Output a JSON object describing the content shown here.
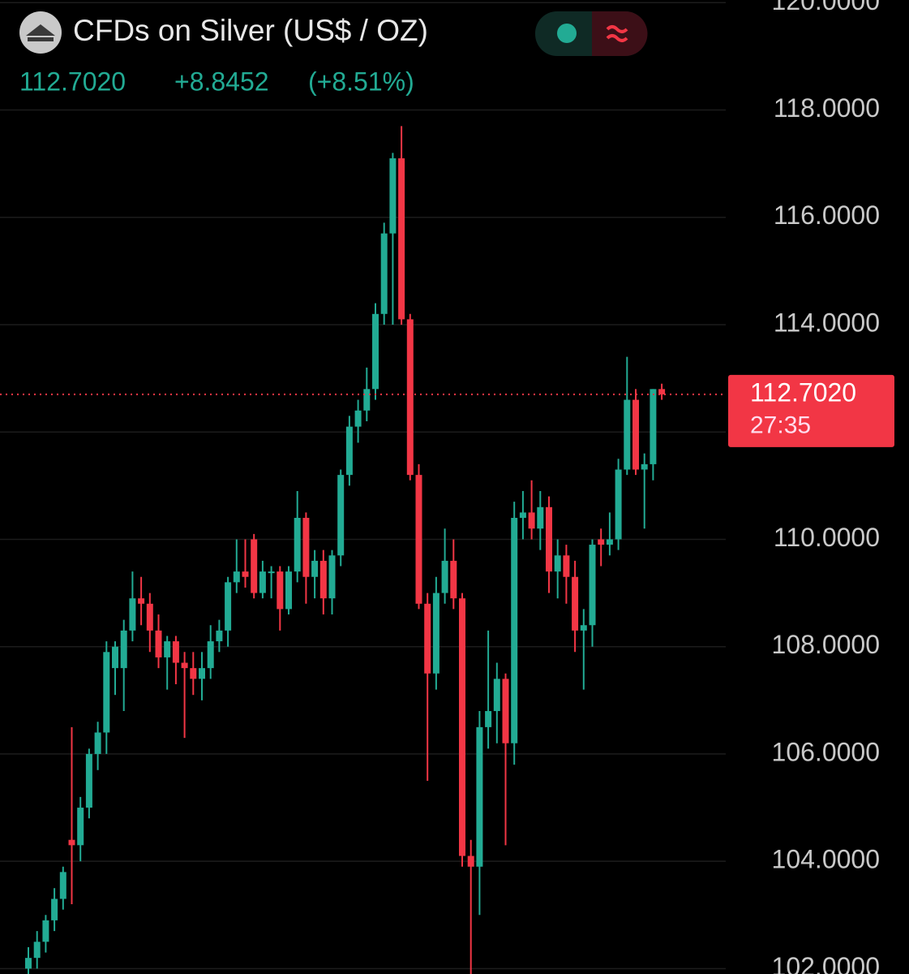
{
  "chart_data": {
    "type": "candlestick",
    "title": "CFDs on Silver (US$ / OZ)",
    "price_text": "112.7020",
    "change": "+8.8452",
    "change_pct": "(+8.51%)",
    "up_color": "#22ab94",
    "down_color": "#f23645",
    "grid": true,
    "ylim": [
      101.9,
      120.05
    ],
    "yticks": [
      {
        "value": 102,
        "label": "102.0000"
      },
      {
        "value": 104,
        "label": "104.0000"
      },
      {
        "value": 106,
        "label": "106.0000"
      },
      {
        "value": 108,
        "label": "108.0000"
      },
      {
        "value": 110,
        "label": "110.0000"
      },
      {
        "value": 112,
        "label": "112.0000"
      },
      {
        "value": 114,
        "label": "114.0000"
      },
      {
        "value": 116,
        "label": "116.0000"
      },
      {
        "value": 118,
        "label": "118.0000"
      },
      {
        "value": 120,
        "label": "120.0000"
      }
    ],
    "last_price": {
      "value": 112.702,
      "label": "112.7020"
    },
    "countdown": "27:35",
    "open": [
      102.0,
      102.2,
      102.5,
      102.9,
      103.3,
      104.4,
      104.3,
      105.0,
      106.0,
      106.4,
      107.6,
      107.6,
      108.3,
      108.9,
      108.8,
      108.3,
      107.8,
      108.1,
      107.7,
      107.6,
      107.4,
      107.6,
      108.1,
      108.3,
      109.2,
      109.4,
      110.0,
      109.0,
      109.4,
      109.4,
      108.7,
      109.4,
      110.4,
      109.3,
      109.6,
      108.9,
      109.7,
      111.2,
      112.1,
      112.4,
      112.8,
      114.2,
      115.7,
      117.1,
      114.1,
      111.2,
      108.8,
      107.5,
      109.0,
      109.6,
      108.9,
      104.1,
      103.9,
      106.5,
      106.8,
      107.4,
      106.2,
      110.4,
      110.5,
      110.2,
      110.6,
      109.4,
      109.7,
      109.3,
      108.3,
      108.4,
      110.0,
      109.9,
      110.0,
      111.3,
      112.6,
      111.3,
      111.4,
      112.8
    ],
    "high": [
      102.4,
      102.7,
      103.0,
      103.5,
      103.9,
      106.5,
      105.2,
      106.1,
      106.6,
      108.1,
      108.1,
      108.5,
      109.4,
      109.3,
      109.0,
      108.6,
      108.2,
      108.2,
      107.9,
      107.9,
      107.9,
      108.4,
      108.5,
      109.3,
      110.0,
      110.0,
      110.1,
      109.6,
      109.5,
      109.5,
      109.5,
      110.9,
      110.5,
      109.8,
      109.8,
      109.8,
      111.3,
      112.3,
      112.6,
      113.2,
      114.4,
      115.9,
      117.2,
      117.7,
      114.2,
      111.4,
      109.0,
      109.3,
      110.2,
      110.0,
      109.0,
      104.4,
      106.8,
      108.3,
      107.7,
      107.5,
      110.7,
      110.9,
      111.1,
      110.9,
      110.8,
      110.0,
      109.9,
      109.6,
      108.7,
      110.0,
      110.2,
      110.5,
      111.5,
      113.4,
      112.8,
      111.6,
      112.8,
      112.9
    ],
    "low": [
      101.9,
      102.0,
      102.3,
      102.7,
      103.1,
      103.2,
      104.0,
      104.8,
      105.7,
      106.0,
      107.1,
      106.8,
      108.1,
      108.4,
      107.9,
      107.6,
      107.2,
      107.3,
      106.3,
      107.1,
      107.0,
      107.4,
      107.9,
      108.0,
      109.0,
      109.1,
      108.9,
      108.9,
      108.9,
      108.3,
      108.6,
      109.2,
      108.8,
      108.9,
      108.6,
      108.6,
      109.5,
      111.0,
      111.8,
      112.2,
      112.6,
      114.0,
      114.0,
      114.0,
      111.1,
      108.7,
      105.5,
      107.2,
      108.8,
      108.7,
      103.9,
      101.9,
      103.0,
      106.1,
      106.2,
      104.3,
      105.8,
      110.0,
      110.0,
      109.8,
      109.0,
      108.9,
      108.8,
      107.9,
      107.2,
      108.0,
      109.5,
      109.7,
      109.8,
      111.2,
      111.2,
      110.2,
      111.1,
      112.6
    ],
    "close": [
      102.2,
      102.5,
      102.9,
      103.3,
      103.8,
      104.3,
      105.0,
      106.0,
      106.4,
      107.9,
      108.0,
      108.3,
      108.9,
      108.8,
      108.3,
      107.8,
      108.1,
      107.7,
      107.6,
      107.4,
      107.6,
      108.1,
      108.3,
      109.2,
      109.4,
      109.3,
      109.0,
      109.4,
      109.4,
      108.7,
      109.4,
      110.4,
      109.3,
      109.6,
      108.9,
      109.7,
      111.2,
      112.1,
      112.4,
      112.8,
      114.2,
      115.7,
      117.1,
      114.1,
      111.2,
      108.8,
      107.5,
      109.0,
      109.6,
      108.9,
      104.1,
      103.9,
      106.5,
      106.8,
      107.4,
      106.2,
      110.4,
      110.5,
      110.2,
      110.6,
      109.4,
      109.7,
      109.3,
      108.3,
      108.4,
      109.9,
      109.9,
      110.0,
      111.3,
      112.6,
      111.3,
      111.4,
      112.8,
      112.7
    ]
  }
}
